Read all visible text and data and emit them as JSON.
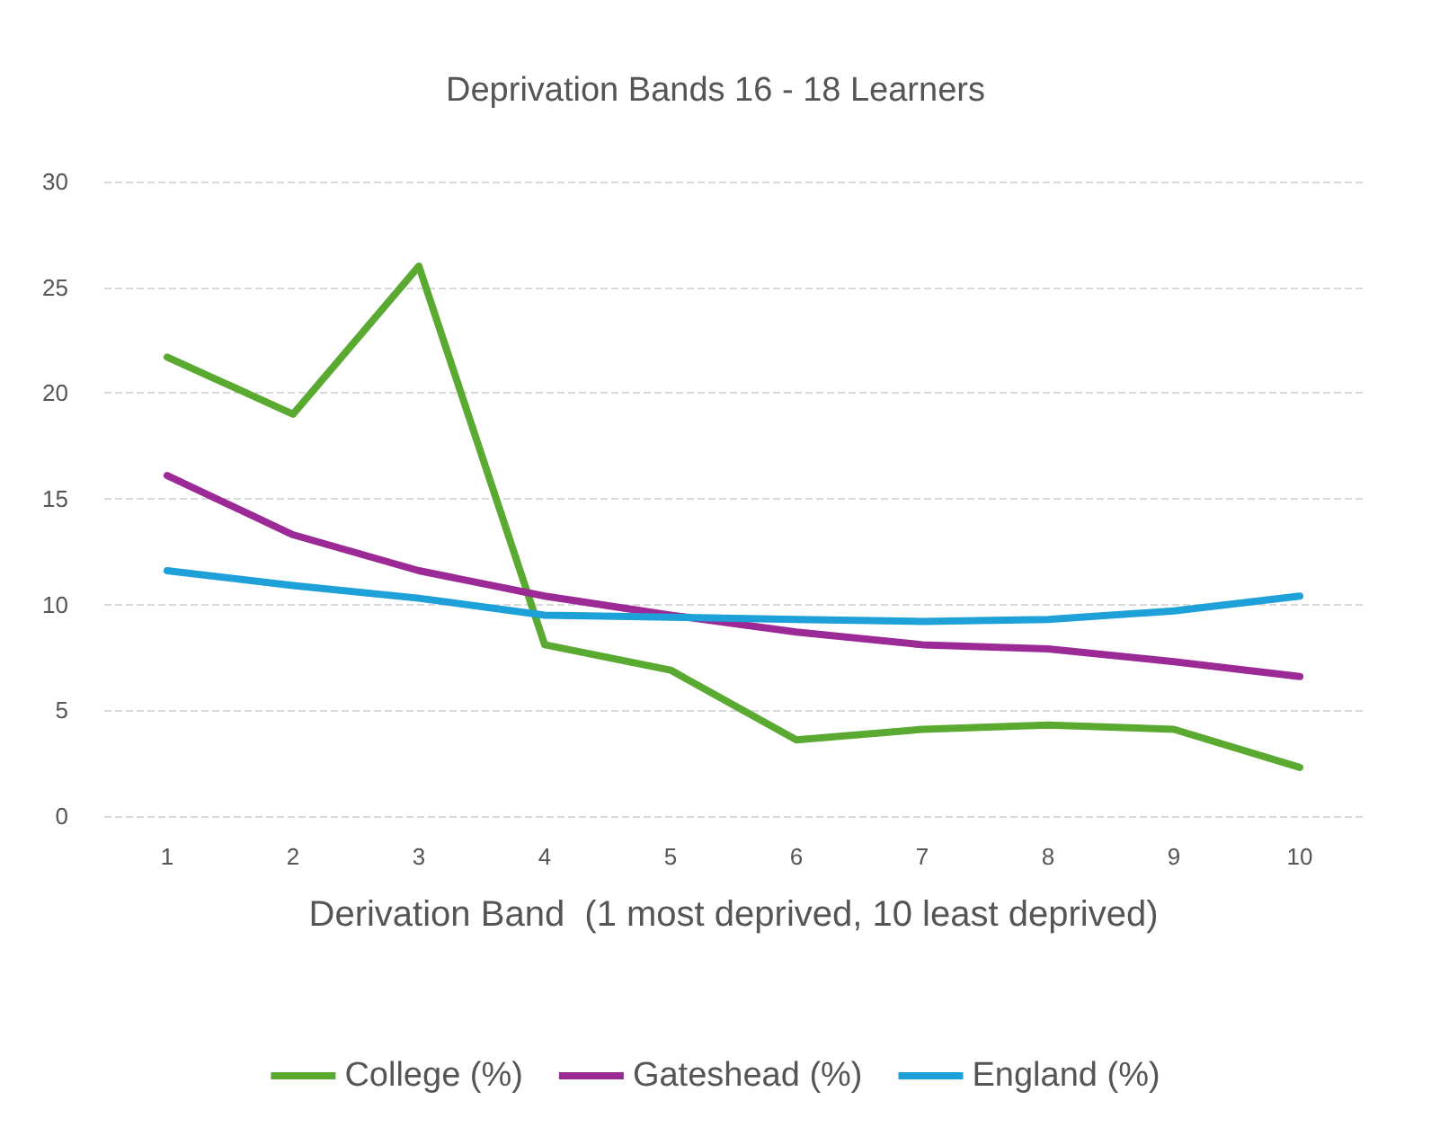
{
  "chart_data": {
    "type": "line",
    "title": "Deprivation Bands 16 - 18 Learners",
    "xlabel": "Derivation Band  (1 most deprived, 10 least deprived)",
    "categories": [
      "1",
      "2",
      "3",
      "4",
      "5",
      "6",
      "7",
      "8",
      "9",
      "10"
    ],
    "series": [
      {
        "name": "College (%)",
        "color": "#5aaa32",
        "values": [
          21.7,
          19.0,
          26.0,
          8.1,
          6.9,
          3.6,
          4.1,
          4.3,
          4.1,
          2.3
        ]
      },
      {
        "name": "Gateshead (%)",
        "color": "#9c2a96",
        "values": [
          16.1,
          13.3,
          11.6,
          10.4,
          9.5,
          8.7,
          8.1,
          7.9,
          7.3,
          6.6
        ]
      },
      {
        "name": "England (%)",
        "color": "#1ea0d8",
        "values": [
          11.6,
          10.9,
          10.3,
          9.5,
          9.4,
          9.3,
          9.2,
          9.3,
          9.7,
          10.4
        ]
      }
    ],
    "ylim": [
      0,
      30
    ],
    "yticks": [
      0,
      5,
      10,
      15,
      20,
      25,
      30
    ],
    "grid": "y",
    "legend": "bottom",
    "marker": "none",
    "line_style": "solid"
  }
}
